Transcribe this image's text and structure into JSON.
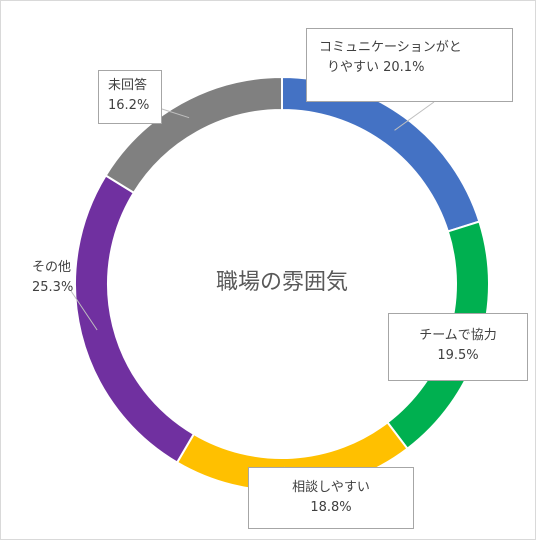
{
  "chart_data": {
    "type": "pie",
    "title": "職場の雰囲気",
    "slices": [
      {
        "label_lines": [
          "コミュニケーションがと",
          "りやすい 20.1%"
        ],
        "value": 20.1,
        "color": "#4472C4"
      },
      {
        "label_lines": [
          "チームで協力",
          "19.5%"
        ],
        "value": 19.5,
        "color": "#00B050"
      },
      {
        "label_lines": [
          "相談しやすい",
          "18.8%"
        ],
        "value": 18.8,
        "color": "#FFC000"
      },
      {
        "label_lines": [
          "その他",
          "25.3%"
        ],
        "value": 25.3,
        "color": "#7030A0"
      },
      {
        "label_lines": [
          "未回答",
          "16.2%"
        ],
        "value": 16.2,
        "color": "#808080"
      }
    ]
  }
}
